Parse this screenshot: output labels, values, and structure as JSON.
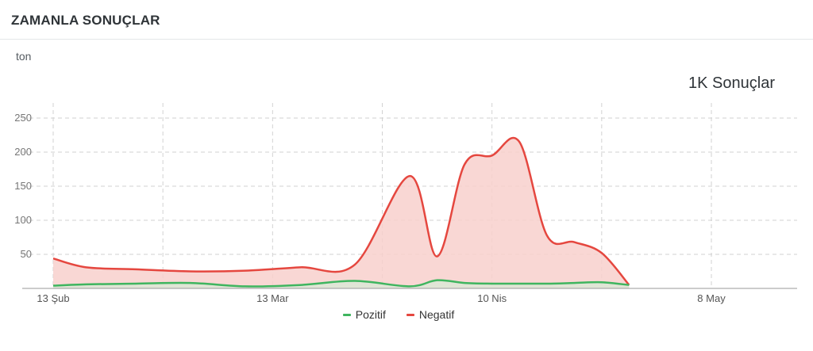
{
  "header": {
    "title": "ZAMANLA SONUÇLAR"
  },
  "unit_label": "ton",
  "summary_label": "1K Sonuçlar",
  "colors": {
    "positive": "#3fb55f",
    "negative": "#e5473f",
    "negative_fill": "#f8d0cd",
    "grid": "#d2d2d2"
  },
  "chart_data": {
    "type": "area",
    "ylim": [
      0,
      250
    ],
    "yticks": [
      50,
      100,
      150,
      200,
      250
    ],
    "xticks": [
      {
        "label": "13 Şub",
        "x": 0
      },
      {
        "label": "13 Mar",
        "x": 4
      },
      {
        "label": "10 Nis",
        "x": 8
      },
      {
        "label": "8 May",
        "x": 12
      }
    ],
    "x": [
      0,
      0.6,
      1.5,
      2.5,
      3.5,
      4.5,
      5.5,
      6.5,
      7.0,
      7.5,
      8.0,
      8.5,
      9.0,
      9.5,
      10.0,
      10.5,
      11.0,
      11.5,
      12.0,
      12.5
    ],
    "series": [
      {
        "name": "Pozitif",
        "key": "positive",
        "values": [
          4,
          6,
          7,
          8,
          3,
          5,
          11,
          3,
          12,
          8,
          7,
          7,
          7,
          8,
          9,
          5,
          0,
          0,
          0,
          0
        ]
      },
      {
        "name": "Negatif",
        "key": "negative",
        "values": [
          44,
          31,
          28,
          25,
          26,
          31,
          35,
          165,
          47,
          182,
          195,
          215,
          78,
          68,
          52,
          5,
          0,
          0,
          0,
          0
        ]
      }
    ]
  }
}
